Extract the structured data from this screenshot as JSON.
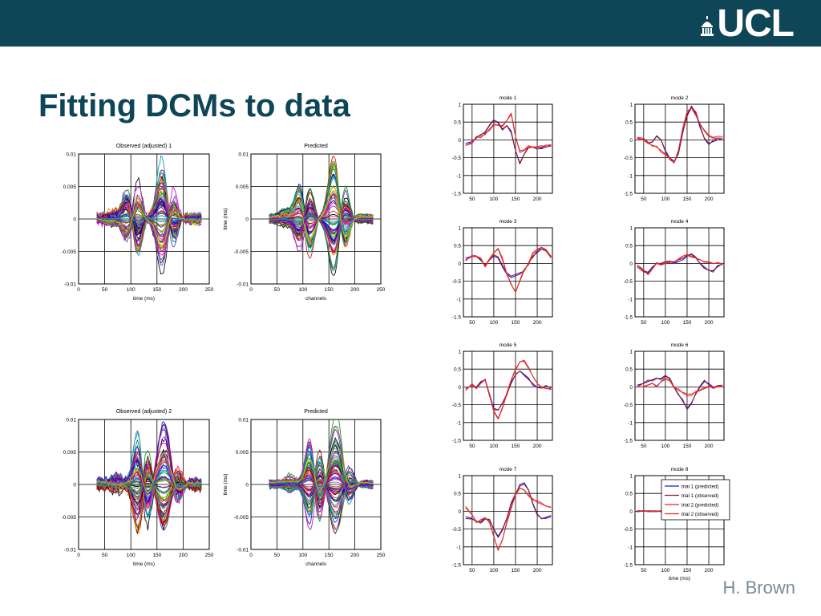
{
  "header": {
    "logo_text": "UCL",
    "logo_icon": "ucl-dome-icon",
    "banner_color": "#0e4658"
  },
  "slide": {
    "title": "Fitting DCMs to data",
    "author": "H. Brown"
  },
  "chart_data": [
    {
      "id": "obs1",
      "type": "line",
      "title": "Observed (adjusted) 1",
      "xlabel": "time (ms)",
      "ylabel": "",
      "xlim": [
        0,
        250
      ],
      "ylim": [
        -0.01,
        0.01
      ],
      "xticks": [
        "0",
        "50",
        "100",
        "150",
        "200",
        "250"
      ],
      "yticks": [
        "-0.01",
        "-0.005",
        "0",
        "0.005",
        "0.01"
      ],
      "grid": true,
      "description_series": "many overlaid channel traces, x from 35 to 235 ms"
    },
    {
      "id": "pred1",
      "type": "line",
      "title": "Predicted",
      "xlabel": "channels",
      "ylabel": "time (ms)",
      "xlim": [
        0,
        250
      ],
      "ylim": [
        -0.01,
        0.01
      ],
      "xticks": [
        "0",
        "50",
        "100",
        "150",
        "200",
        "250"
      ],
      "yticks": [
        "-0.01",
        "-0.005",
        "0",
        "0.005",
        "0.01"
      ],
      "grid": true
    },
    {
      "id": "obs2",
      "type": "line",
      "title": "Observed (adjusted) 2",
      "xlabel": "time (ms)",
      "ylabel": "",
      "xlim": [
        0,
        250
      ],
      "ylim": [
        -0.01,
        0.01
      ],
      "xticks": [
        "0",
        "50",
        "100",
        "150",
        "200",
        "250"
      ],
      "yticks": [
        "-0.01",
        "-0.005",
        "0",
        "0.005",
        "0.01"
      ],
      "grid": true
    },
    {
      "id": "pred2",
      "type": "line",
      "title": "Predicted",
      "xlabel": "channels",
      "ylabel": "time (ms)",
      "xlim": [
        0,
        250
      ],
      "ylim": [
        -0.01,
        0.01
      ],
      "xticks": [
        "0",
        "50",
        "100",
        "150",
        "200",
        "250"
      ],
      "yticks": [
        "-0.01",
        "-0.005",
        "0",
        "0.005",
        "0.01"
      ],
      "grid": true
    },
    {
      "id": "modes",
      "type": "line",
      "xlim": [
        30,
        235
      ],
      "ylim": [
        -1.5,
        1
      ],
      "xticks": [
        "50",
        "100",
        "150",
        "200"
      ],
      "yticks": [
        "1",
        "0.5",
        "0",
        "-0.5",
        "-1",
        "-1.5"
      ],
      "grid": true,
      "xlabel_last": "time (ms)",
      "legend": {
        "placement": "center",
        "entries": [
          "trial 1 (predicted)",
          "trial 1 (observed)",
          "trial 2 (predicted)",
          "trial 2 (observed)"
        ]
      },
      "series_colors": [
        "#1a1adc",
        "#8b1a2a",
        "#e0282a",
        "#e0282a"
      ],
      "panels": [
        {
          "title": "mode 1",
          "x": [
            35,
            50,
            60,
            70,
            80,
            90,
            100,
            110,
            120,
            130,
            140,
            150,
            160,
            170,
            180,
            190,
            200,
            210,
            220,
            232
          ],
          "trial1": [
            -0.1,
            -0.05,
            0.05,
            0.15,
            0.2,
            0.4,
            0.55,
            0.5,
            0.3,
            0.4,
            0.2,
            -0.3,
            -0.65,
            -0.4,
            -0.2,
            -0.2,
            -0.25,
            -0.25,
            -0.2,
            -0.15
          ],
          "trial2": [
            -0.15,
            -0.1,
            0.1,
            0.1,
            0.15,
            0.3,
            0.45,
            0.4,
            0.4,
            0.55,
            0.75,
            0.1,
            -0.35,
            -0.3,
            -0.2,
            -0.2,
            -0.2,
            -0.2,
            -0.15,
            -0.15
          ]
        },
        {
          "title": "mode 2",
          "x": [
            35,
            50,
            60,
            70,
            80,
            90,
            100,
            110,
            120,
            130,
            140,
            150,
            160,
            170,
            180,
            190,
            200,
            210,
            220,
            232
          ],
          "trial1": [
            0.05,
            0.0,
            -0.1,
            -0.05,
            0.1,
            0.0,
            -0.3,
            -0.5,
            -0.6,
            -0.4,
            0.2,
            0.7,
            0.95,
            0.75,
            0.35,
            0.05,
            -0.1,
            -0.05,
            0.0,
            0.0
          ],
          "trial2": [
            0.05,
            0.0,
            -0.1,
            -0.15,
            -0.2,
            -0.3,
            -0.4,
            -0.5,
            -0.65,
            -0.3,
            0.3,
            0.8,
            0.9,
            0.7,
            0.45,
            0.25,
            0.1,
            0.05,
            0.05,
            0.05
          ]
        },
        {
          "title": "mode 3",
          "x": [
            35,
            50,
            60,
            70,
            80,
            90,
            100,
            110,
            120,
            130,
            140,
            150,
            160,
            170,
            180,
            190,
            200,
            210,
            220,
            232
          ],
          "trial1": [
            0.15,
            0.2,
            0.2,
            0.1,
            -0.05,
            0.1,
            0.2,
            0.15,
            -0.1,
            -0.3,
            -0.4,
            -0.35,
            -0.3,
            -0.2,
            0.0,
            0.2,
            0.3,
            0.4,
            0.35,
            0.2
          ],
          "trial2": [
            0.1,
            0.2,
            0.2,
            0.15,
            -0.1,
            0.1,
            0.3,
            0.4,
            0.1,
            -0.3,
            -0.6,
            -0.8,
            -0.5,
            -0.2,
            0.0,
            0.3,
            0.4,
            0.45,
            0.35,
            0.15
          ]
        },
        {
          "title": "mode 4",
          "x": [
            35,
            50,
            60,
            70,
            80,
            90,
            100,
            110,
            120,
            130,
            140,
            150,
            160,
            170,
            180,
            190,
            200,
            210,
            220,
            232
          ],
          "trial1": [
            -0.05,
            -0.2,
            -0.25,
            -0.1,
            0.0,
            0.0,
            0.05,
            0.05,
            0.0,
            0.05,
            0.1,
            0.2,
            0.25,
            0.15,
            0.0,
            -0.1,
            -0.2,
            -0.2,
            -0.1,
            0.0
          ],
          "trial2": [
            -0.05,
            -0.2,
            -0.3,
            -0.15,
            0.0,
            -0.05,
            0.0,
            0.05,
            0.05,
            0.1,
            0.2,
            0.25,
            0.2,
            0.15,
            0.1,
            0.05,
            0.05,
            0.0,
            0.0,
            0.0
          ]
        },
        {
          "title": "mode 5",
          "x": [
            35,
            50,
            60,
            70,
            80,
            90,
            100,
            110,
            120,
            130,
            140,
            150,
            160,
            170,
            180,
            190,
            200,
            210,
            220,
            232
          ],
          "trial1": [
            -0.05,
            0.05,
            0.0,
            0.15,
            0.2,
            -0.2,
            -0.6,
            -0.65,
            -0.45,
            -0.2,
            0.1,
            0.35,
            0.45,
            0.35,
            0.25,
            0.05,
            0.0,
            0.0,
            0.0,
            0.0
          ],
          "trial2": [
            -0.05,
            0.05,
            -0.05,
            0.1,
            0.2,
            -0.2,
            -0.7,
            -0.9,
            -0.6,
            -0.2,
            0.2,
            0.5,
            0.7,
            0.75,
            0.55,
            0.3,
            0.1,
            0.0,
            -0.05,
            -0.05
          ]
        },
        {
          "title": "mode 6",
          "x": [
            35,
            50,
            60,
            70,
            80,
            90,
            100,
            110,
            120,
            130,
            140,
            150,
            160,
            170,
            180,
            190,
            200,
            210,
            220,
            232
          ],
          "trial1": [
            0.05,
            0.1,
            0.15,
            0.2,
            0.25,
            0.2,
            0.3,
            0.25,
            0.0,
            -0.2,
            -0.4,
            -0.6,
            -0.45,
            -0.2,
            0.0,
            0.15,
            0.1,
            0.0,
            0.0,
            0.0
          ],
          "trial2": [
            0.0,
            0.0,
            0.05,
            0.1,
            0.0,
            0.15,
            0.25,
            0.2,
            0.0,
            -0.1,
            -0.15,
            -0.2,
            -0.2,
            -0.15,
            -0.1,
            -0.05,
            0.0,
            0.0,
            0.0,
            0.0
          ]
        },
        {
          "title": "mode 7",
          "x": [
            35,
            50,
            60,
            70,
            80,
            90,
            100,
            110,
            120,
            130,
            140,
            150,
            160,
            170,
            180,
            190,
            200,
            210,
            220,
            232
          ],
          "trial1": [
            -0.15,
            -0.2,
            -0.3,
            -0.3,
            -0.2,
            -0.25,
            -0.5,
            -0.7,
            -0.5,
            -0.2,
            0.2,
            0.45,
            0.75,
            0.8,
            0.6,
            0.2,
            -0.1,
            -0.2,
            -0.2,
            -0.15
          ],
          "trial2": [
            0.1,
            -0.1,
            -0.3,
            -0.25,
            -0.2,
            -0.3,
            -0.7,
            -1.1,
            -0.8,
            -0.3,
            0.1,
            0.45,
            0.65,
            0.6,
            0.45,
            0.35,
            0.25,
            0.2,
            0.15,
            0.1
          ]
        },
        {
          "title": "mode 8",
          "x": [
            35,
            50,
            60,
            70,
            80,
            90,
            100,
            110,
            120,
            130,
            140,
            150,
            160,
            170,
            180,
            190,
            200,
            210,
            220,
            232
          ],
          "trial1": [
            0,
            0,
            0,
            0,
            0,
            0,
            0,
            0,
            0,
            0,
            0,
            0,
            0,
            0,
            0,
            0,
            0,
            0,
            0,
            0
          ],
          "trial2": [
            0,
            0,
            0,
            0,
            0,
            0,
            0,
            0,
            0,
            0,
            0,
            0,
            0,
            0,
            0,
            0,
            0,
            0,
            0,
            0
          ]
        }
      ]
    }
  ]
}
